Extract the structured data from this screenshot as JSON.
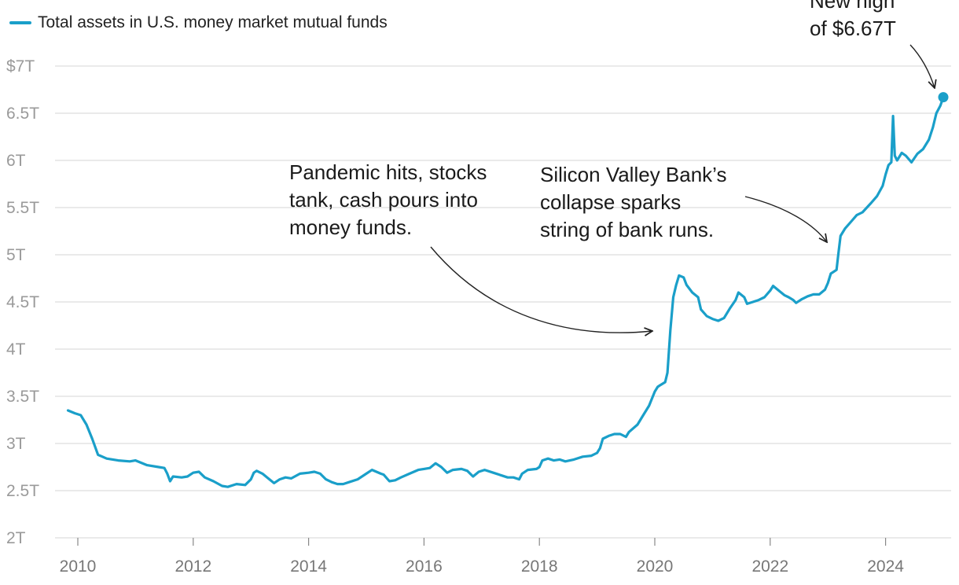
{
  "legend": {
    "label": "Total assets in U.S. money market mutual funds",
    "color": "#1a9fc9"
  },
  "chart_data": {
    "type": "line",
    "title": "",
    "xlabel": "",
    "ylabel": "",
    "xlim": [
      2009.6,
      2025.3
    ],
    "ylim": [
      2,
      7
    ],
    "grid": true,
    "legend_position": "top-left",
    "y_ticks": [
      {
        "value": 7,
        "label": "$7T"
      },
      {
        "value": 6.5,
        "label": "6.5T"
      },
      {
        "value": 6,
        "label": "6T"
      },
      {
        "value": 5.5,
        "label": "5.5T"
      },
      {
        "value": 5,
        "label": "5T"
      },
      {
        "value": 4.5,
        "label": "4.5T"
      },
      {
        "value": 4,
        "label": "4T"
      },
      {
        "value": 3.5,
        "label": "3.5T"
      },
      {
        "value": 3,
        "label": "3T"
      },
      {
        "value": 2.5,
        "label": "2.5T"
      },
      {
        "value": 2,
        "label": "2T"
      }
    ],
    "x_ticks": [
      {
        "value": 2010,
        "label": "2010"
      },
      {
        "value": 2012,
        "label": "2012"
      },
      {
        "value": 2014,
        "label": "2014"
      },
      {
        "value": 2016,
        "label": "2016"
      },
      {
        "value": 2018,
        "label": "2018"
      },
      {
        "value": 2020,
        "label": "2020"
      },
      {
        "value": 2022,
        "label": "2022"
      },
      {
        "value": 2024,
        "label": "2024"
      }
    ],
    "series": [
      {
        "name": "Total assets in U.S. money market mutual funds",
        "color": "#1a9fc9",
        "points": [
          [
            2009.83,
            3.35
          ],
          [
            2009.95,
            3.32
          ],
          [
            2010.05,
            3.3
          ],
          [
            2010.15,
            3.2
          ],
          [
            2010.25,
            3.05
          ],
          [
            2010.35,
            2.88
          ],
          [
            2010.5,
            2.84
          ],
          [
            2010.7,
            2.82
          ],
          [
            2010.9,
            2.81
          ],
          [
            2011.0,
            2.82
          ],
          [
            2011.2,
            2.77
          ],
          [
            2011.4,
            2.75
          ],
          [
            2011.5,
            2.74
          ],
          [
            2011.55,
            2.68
          ],
          [
            2011.6,
            2.6
          ],
          [
            2011.65,
            2.65
          ],
          [
            2011.8,
            2.64
          ],
          [
            2011.9,
            2.65
          ],
          [
            2012.0,
            2.69
          ],
          [
            2012.1,
            2.7
          ],
          [
            2012.2,
            2.64
          ],
          [
            2012.35,
            2.6
          ],
          [
            2012.5,
            2.55
          ],
          [
            2012.6,
            2.54
          ],
          [
            2012.75,
            2.57
          ],
          [
            2012.9,
            2.56
          ],
          [
            2013.0,
            2.62
          ],
          [
            2013.05,
            2.69
          ],
          [
            2013.1,
            2.71
          ],
          [
            2013.2,
            2.68
          ],
          [
            2013.3,
            2.63
          ],
          [
            2013.4,
            2.58
          ],
          [
            2013.5,
            2.62
          ],
          [
            2013.6,
            2.64
          ],
          [
            2013.7,
            2.63
          ],
          [
            2013.85,
            2.68
          ],
          [
            2014.0,
            2.69
          ],
          [
            2014.1,
            2.7
          ],
          [
            2014.2,
            2.68
          ],
          [
            2014.3,
            2.62
          ],
          [
            2014.4,
            2.59
          ],
          [
            2014.5,
            2.57
          ],
          [
            2014.6,
            2.57
          ],
          [
            2014.7,
            2.59
          ],
          [
            2014.85,
            2.62
          ],
          [
            2015.0,
            2.68
          ],
          [
            2015.1,
            2.72
          ],
          [
            2015.25,
            2.68
          ],
          [
            2015.3,
            2.67
          ],
          [
            2015.4,
            2.6
          ],
          [
            2015.5,
            2.61
          ],
          [
            2015.6,
            2.64
          ],
          [
            2015.75,
            2.68
          ],
          [
            2015.9,
            2.72
          ],
          [
            2016.0,
            2.73
          ],
          [
            2016.1,
            2.74
          ],
          [
            2016.2,
            2.79
          ],
          [
            2016.3,
            2.75
          ],
          [
            2016.4,
            2.69
          ],
          [
            2016.5,
            2.72
          ],
          [
            2016.65,
            2.73
          ],
          [
            2016.75,
            2.71
          ],
          [
            2016.85,
            2.65
          ],
          [
            2016.95,
            2.7
          ],
          [
            2017.05,
            2.72
          ],
          [
            2017.2,
            2.69
          ],
          [
            2017.35,
            2.66
          ],
          [
            2017.45,
            2.64
          ],
          [
            2017.55,
            2.64
          ],
          [
            2017.65,
            2.62
          ],
          [
            2017.7,
            2.68
          ],
          [
            2017.8,
            2.72
          ],
          [
            2017.95,
            2.73
          ],
          [
            2018.0,
            2.75
          ],
          [
            2018.05,
            2.82
          ],
          [
            2018.15,
            2.84
          ],
          [
            2018.25,
            2.82
          ],
          [
            2018.35,
            2.83
          ],
          [
            2018.45,
            2.81
          ],
          [
            2018.6,
            2.83
          ],
          [
            2018.75,
            2.86
          ],
          [
            2018.9,
            2.87
          ],
          [
            2019.0,
            2.9
          ],
          [
            2019.05,
            2.95
          ],
          [
            2019.1,
            3.05
          ],
          [
            2019.2,
            3.08
          ],
          [
            2019.3,
            3.1
          ],
          [
            2019.4,
            3.1
          ],
          [
            2019.5,
            3.07
          ],
          [
            2019.55,
            3.12
          ],
          [
            2019.7,
            3.2
          ],
          [
            2019.8,
            3.3
          ],
          [
            2019.9,
            3.4
          ],
          [
            2020.0,
            3.55
          ],
          [
            2020.05,
            3.6
          ],
          [
            2020.1,
            3.62
          ],
          [
            2020.18,
            3.65
          ],
          [
            2020.22,
            3.75
          ],
          [
            2020.27,
            4.2
          ],
          [
            2020.32,
            4.55
          ],
          [
            2020.37,
            4.68
          ],
          [
            2020.42,
            4.78
          ],
          [
            2020.5,
            4.76
          ],
          [
            2020.55,
            4.68
          ],
          [
            2020.65,
            4.6
          ],
          [
            2020.75,
            4.55
          ],
          [
            2020.8,
            4.42
          ],
          [
            2020.9,
            4.35
          ],
          [
            2021.0,
            4.32
          ],
          [
            2021.1,
            4.3
          ],
          [
            2021.2,
            4.33
          ],
          [
            2021.3,
            4.43
          ],
          [
            2021.4,
            4.52
          ],
          [
            2021.45,
            4.6
          ],
          [
            2021.55,
            4.55
          ],
          [
            2021.6,
            4.48
          ],
          [
            2021.7,
            4.5
          ],
          [
            2021.8,
            4.52
          ],
          [
            2021.9,
            4.55
          ],
          [
            2022.0,
            4.62
          ],
          [
            2022.05,
            4.67
          ],
          [
            2022.15,
            4.62
          ],
          [
            2022.25,
            4.57
          ],
          [
            2022.32,
            4.55
          ],
          [
            2022.4,
            4.52
          ],
          [
            2022.45,
            4.49
          ],
          [
            2022.55,
            4.53
          ],
          [
            2022.65,
            4.56
          ],
          [
            2022.75,
            4.58
          ],
          [
            2022.85,
            4.58
          ],
          [
            2022.95,
            4.63
          ],
          [
            2023.0,
            4.7
          ],
          [
            2023.05,
            4.8
          ],
          [
            2023.15,
            4.84
          ],
          [
            2023.18,
            5.0
          ],
          [
            2023.22,
            5.2
          ],
          [
            2023.3,
            5.28
          ],
          [
            2023.4,
            5.35
          ],
          [
            2023.5,
            5.42
          ],
          [
            2023.6,
            5.45
          ],
          [
            2023.75,
            5.55
          ],
          [
            2023.85,
            5.62
          ],
          [
            2023.95,
            5.73
          ],
          [
            2024.0,
            5.85
          ],
          [
            2024.05,
            5.95
          ],
          [
            2024.1,
            5.98
          ],
          [
            2024.13,
            6.47
          ],
          [
            2024.16,
            6.05
          ],
          [
            2024.2,
            6.0
          ],
          [
            2024.28,
            6.08
          ],
          [
            2024.35,
            6.05
          ],
          [
            2024.45,
            5.98
          ],
          [
            2024.55,
            6.07
          ],
          [
            2024.65,
            6.12
          ],
          [
            2024.75,
            6.22
          ],
          [
            2024.82,
            6.35
          ],
          [
            2024.88,
            6.5
          ],
          [
            2024.95,
            6.58
          ],
          [
            2025.0,
            6.67
          ]
        ]
      }
    ],
    "highlight_point": {
      "x": 2025.0,
      "y": 6.67
    },
    "annotations": [
      {
        "lines": [
          "New high",
          "of $6.67T"
        ]
      },
      {
        "lines": [
          "Pandemic hits, stocks",
          "tank, cash pours into",
          "money funds."
        ]
      },
      {
        "lines": [
          "Silicon Valley Bank’s",
          "collapse sparks",
          "string of bank runs."
        ]
      }
    ]
  }
}
